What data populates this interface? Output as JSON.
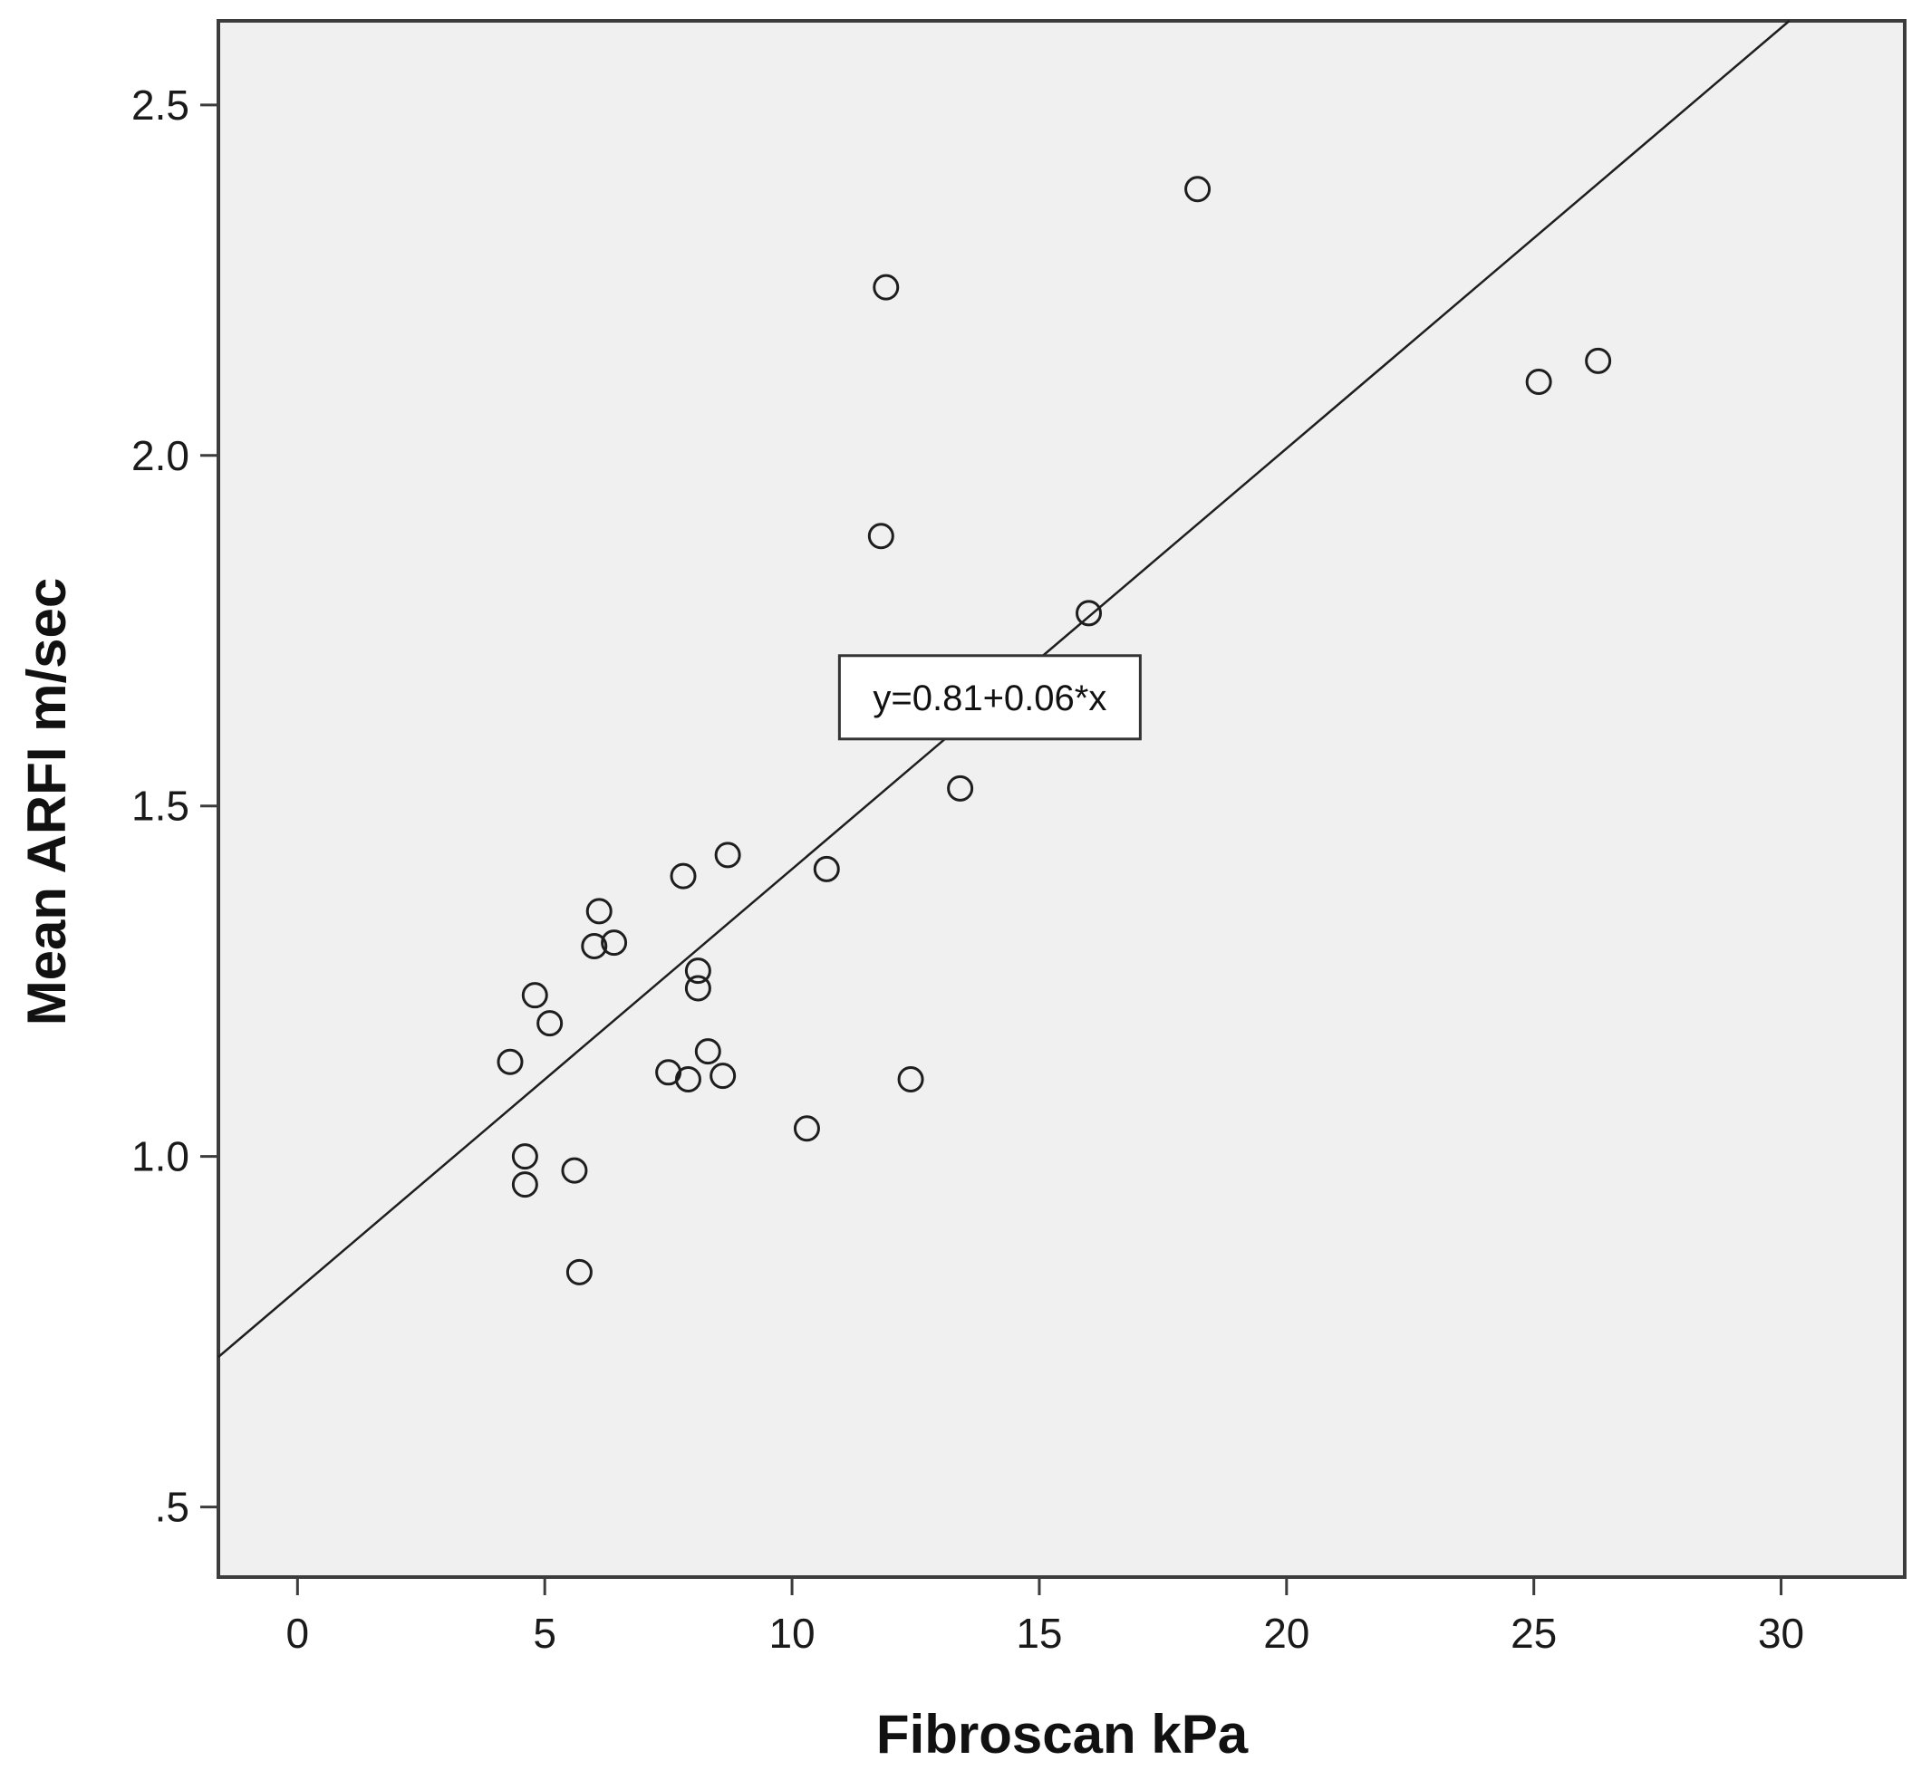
{
  "chart_data": {
    "type": "scatter",
    "xlabel": "Fibroscan kPa",
    "ylabel": "Mean ARFI m/sec",
    "xlim": [
      -1.6,
      32.5
    ],
    "ylim": [
      0.4,
      2.62
    ],
    "x_ticks": [
      0,
      5,
      10,
      15,
      20,
      25,
      30
    ],
    "x_tick_labels": [
      "0",
      "5",
      "10",
      "15",
      "20",
      "25",
      "30"
    ],
    "y_ticks": [
      0.5,
      1.0,
      1.5,
      2.0,
      2.5
    ],
    "y_tick_labels": [
      ".5",
      "1.0",
      "1.5",
      "2.0",
      "2.5"
    ],
    "grid": false,
    "points": [
      {
        "x": 4.3,
        "y": 1.135
      },
      {
        "x": 4.6,
        "y": 1.0
      },
      {
        "x": 4.6,
        "y": 0.96
      },
      {
        "x": 4.8,
        "y": 1.23
      },
      {
        "x": 5.1,
        "y": 1.19
      },
      {
        "x": 5.6,
        "y": 0.98
      },
      {
        "x": 5.7,
        "y": 0.835
      },
      {
        "x": 6.0,
        "y": 1.3
      },
      {
        "x": 6.1,
        "y": 1.35
      },
      {
        "x": 6.4,
        "y": 1.305
      },
      {
        "x": 7.5,
        "y": 1.12
      },
      {
        "x": 7.8,
        "y": 1.4
      },
      {
        "x": 7.9,
        "y": 1.11
      },
      {
        "x": 8.1,
        "y": 1.265
      },
      {
        "x": 8.1,
        "y": 1.24
      },
      {
        "x": 8.3,
        "y": 1.15
      },
      {
        "x": 8.6,
        "y": 1.115
      },
      {
        "x": 8.7,
        "y": 1.43
      },
      {
        "x": 10.3,
        "y": 1.04
      },
      {
        "x": 10.7,
        "y": 1.41
      },
      {
        "x": 11.8,
        "y": 1.885
      },
      {
        "x": 11.9,
        "y": 2.24
      },
      {
        "x": 12.4,
        "y": 1.11
      },
      {
        "x": 13.4,
        "y": 1.525
      },
      {
        "x": 16.0,
        "y": 1.775
      },
      {
        "x": 18.2,
        "y": 2.38
      },
      {
        "x": 25.1,
        "y": 2.105
      },
      {
        "x": 26.3,
        "y": 2.135
      }
    ],
    "fit_line": {
      "intercept": 0.81,
      "slope": 0.06,
      "label": "y=0.81+0.06*x",
      "label_anchor": {
        "x": 14.0,
        "y": 1.655
      }
    }
  }
}
